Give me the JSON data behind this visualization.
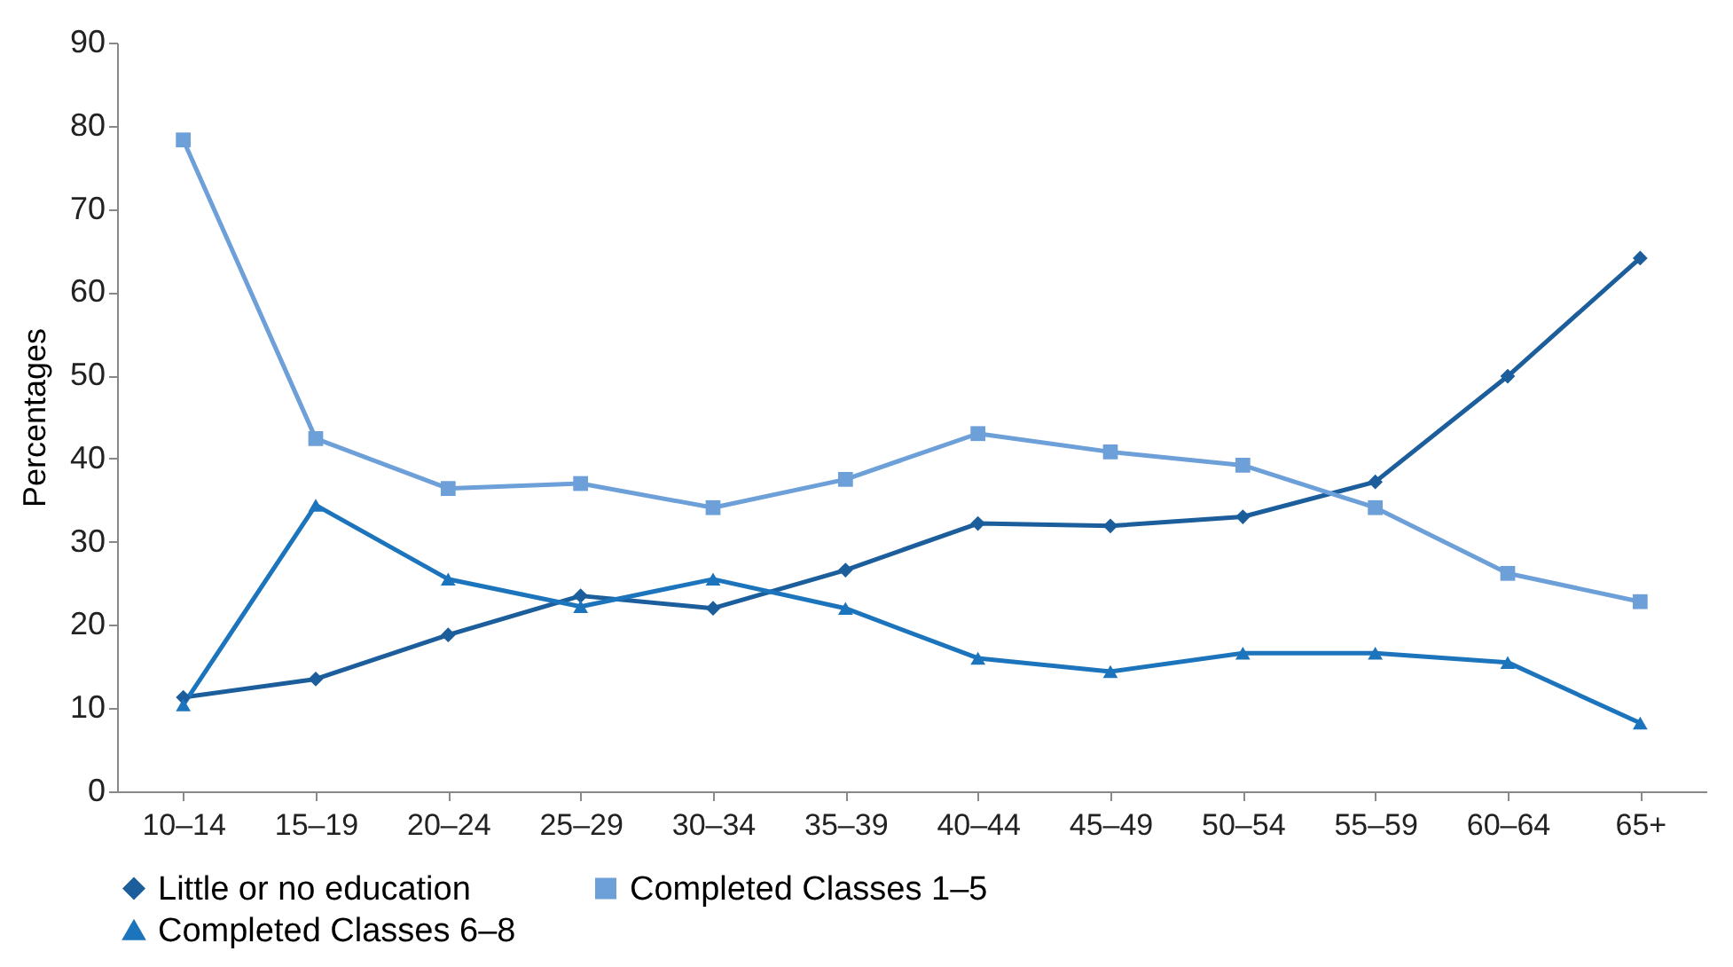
{
  "chart_data": {
    "type": "line",
    "ylabel": "Percentages",
    "categories": [
      "10–14",
      "15–19",
      "20–24",
      "25–29",
      "30–34",
      "35–39",
      "40–44",
      "45–49",
      "50–54",
      "55–59",
      "60–64",
      "65+"
    ],
    "series": [
      {
        "name": "Little or no education",
        "color": "#1b5e9b",
        "marker": "diamond",
        "values": [
          11.3,
          13.5,
          18.8,
          23.5,
          22.0,
          26.6,
          32.2,
          31.9,
          33.0,
          37.2,
          49.9,
          64.1
        ]
      },
      {
        "name": "Completed Classes 1–5",
        "color": "#6d9fd8",
        "marker": "square",
        "values": [
          78.3,
          42.4,
          36.4,
          37.0,
          34.1,
          37.5,
          43.0,
          40.8,
          39.2,
          34.1,
          26.2,
          22.8
        ]
      },
      {
        "name": "Completed Classes 6–8",
        "color": "#1c75bc",
        "marker": "triangle",
        "values": [
          10.4,
          34.4,
          25.5,
          22.2,
          25.5,
          22.0,
          16.0,
          14.4,
          16.6,
          16.6,
          15.5,
          8.2
        ]
      }
    ],
    "ylim": [
      0,
      90
    ],
    "yticks": [
      0,
      10,
      20,
      30,
      40,
      50,
      60,
      70,
      80,
      90
    ],
    "grid": false,
    "legend": "bottom",
    "line_style": "solid"
  }
}
